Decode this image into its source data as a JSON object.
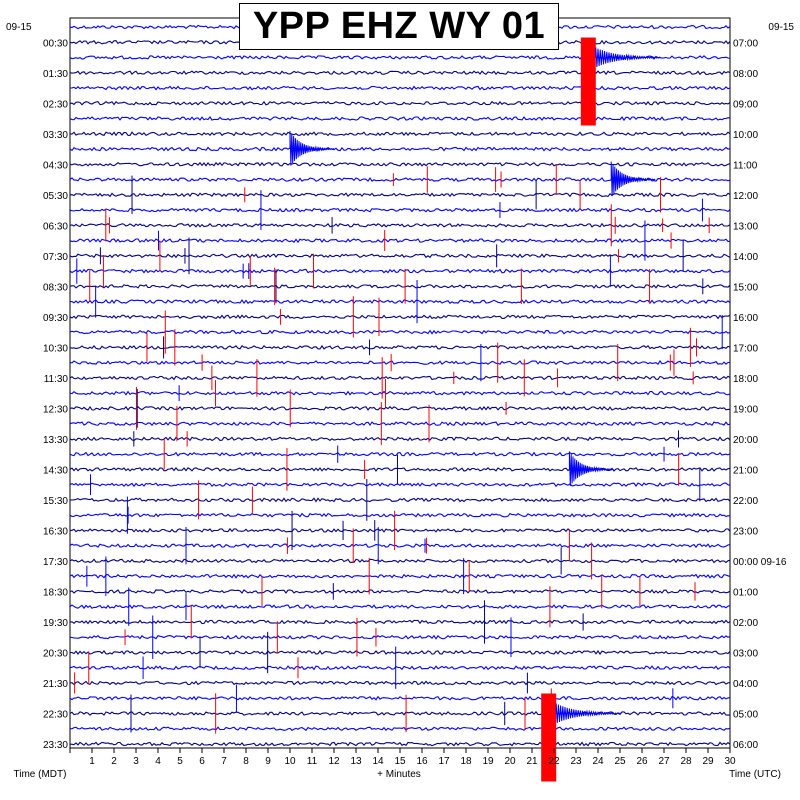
{
  "chart_data": {
    "type": "helicorder",
    "title": "YPP EHZ WY 01",
    "date_left": "09-15",
    "date_right": "09-15",
    "xlabel": "+ Minutes",
    "left_axis_title": "Time (MDT)",
    "right_axis_title": "Time (UTC)",
    "x_ticks": [
      "1",
      "2",
      "3",
      "4",
      "5",
      "6",
      "7",
      "8",
      "9",
      "10",
      "11",
      "12",
      "13",
      "14",
      "15",
      "16",
      "17",
      "18",
      "19",
      "20",
      "21",
      "22",
      "23",
      "24",
      "25",
      "26",
      "27",
      "28",
      "29",
      "30"
    ],
    "xlim": [
      0,
      30
    ],
    "rows_per_hour": 2,
    "row_count": 48,
    "left_labels": [
      "00:30",
      "01:30",
      "02:30",
      "03:30",
      "04:30",
      "05:30",
      "06:30",
      "07:30",
      "08:30",
      "09:30",
      "10:30",
      "11:30",
      "12:30",
      "13:30",
      "14:30",
      "15:30",
      "16:30",
      "17:30",
      "18:30",
      "19:30",
      "20:30",
      "21:30",
      "22:30",
      "23:30"
    ],
    "right_labels": [
      "07:00",
      "08:00",
      "09:00",
      "10:00",
      "11:00",
      "12:00",
      "13:00",
      "14:00",
      "15:00",
      "16:00",
      "17:00",
      "18:00",
      "19:00",
      "20:00",
      "21:00",
      "22:00",
      "23:00",
      "00:00 09-16",
      "01:00",
      "02:00",
      "03:00",
      "04:00",
      "05:00",
      "06:00"
    ],
    "trace_colors": [
      "#0000ff",
      "#000080"
    ],
    "clip_color": "#ff0000",
    "events": [
      {
        "row": 2,
        "minute": 23.4,
        "amplitude": "clipped"
      },
      {
        "row": 8,
        "minute": 10.0,
        "amplitude": "large"
      },
      {
        "row": 10,
        "minute": 24.6,
        "amplitude": "large"
      },
      {
        "row": 29,
        "minute": 22.7,
        "amplitude": "large"
      },
      {
        "row": 45,
        "minute": 21.6,
        "amplitude": "clipped"
      }
    ]
  }
}
